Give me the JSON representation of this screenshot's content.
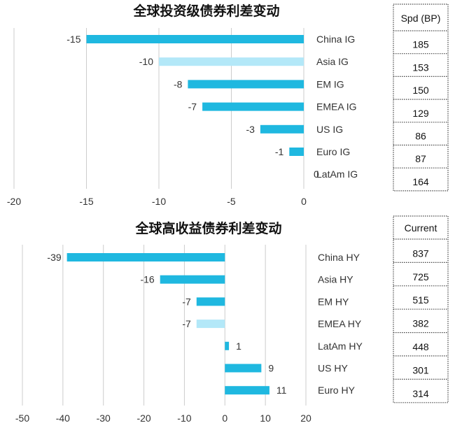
{
  "chart_data": [
    {
      "type": "bar",
      "orientation": "horizontal",
      "title": "全球投资级债券利差变动",
      "categories": [
        "China IG",
        "Asia IG",
        "EM IG",
        "EMEA IG",
        "US IG",
        "Euro IG",
        "LatAm IG"
      ],
      "values": [
        -15,
        -10,
        -8,
        -7,
        -3,
        -1,
        0
      ],
      "value_labels": [
        "-15",
        "-10",
        "-8",
        "-7",
        "-3",
        "-1",
        "0"
      ],
      "highlight": [
        false,
        true,
        false,
        false,
        false,
        false,
        false
      ],
      "xlim": [
        -20,
        0
      ],
      "xticks": [
        "-20",
        "-15",
        "-10",
        "-5",
        "0"
      ],
      "xtick_values": [
        -20,
        -15,
        -10,
        -5,
        0
      ],
      "grid": true,
      "table": {
        "header": "Spd (BP)",
        "values": [
          "185",
          "153",
          "150",
          "129",
          "86",
          "87",
          "164"
        ]
      }
    },
    {
      "type": "bar",
      "orientation": "horizontal",
      "title": "全球高收益债券利差变动",
      "categories": [
        "China HY",
        "Asia HY",
        "EM HY",
        "EMEA HY",
        "LatAm HY",
        "US HY",
        "Euro HY"
      ],
      "values": [
        -39,
        -16,
        -7,
        -7,
        1,
        9,
        11
      ],
      "value_labels": [
        "-39",
        "-16",
        "-7",
        "-7",
        "1",
        "9",
        "11"
      ],
      "highlight": [
        false,
        false,
        false,
        true,
        false,
        false,
        false
      ],
      "xlim": [
        -50,
        20
      ],
      "xticks": [
        "-50",
        "-40",
        "-30",
        "-20",
        "-10",
        "0",
        "10",
        "20"
      ],
      "xtick_values": [
        -50,
        -40,
        -30,
        -20,
        -10,
        0,
        10,
        20
      ],
      "grid": true,
      "table": {
        "header": "Current",
        "values": [
          "837",
          "725",
          "515",
          "382",
          "448",
          "301",
          "314"
        ]
      }
    }
  ],
  "colors": {
    "bar": "#1fb8e0",
    "bar_highlight": "#b3e8f8",
    "grid": "#cccccc",
    "table_border": "#444444"
  }
}
